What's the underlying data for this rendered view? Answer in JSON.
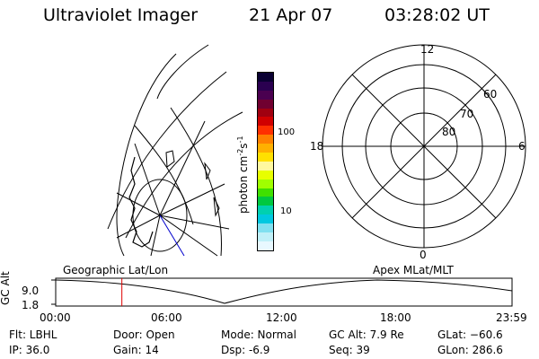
{
  "header": {
    "instrument": "Ultraviolet Imager",
    "date": "21 Apr 07",
    "time": "03:28:02 UT"
  },
  "colorbar": {
    "unit_label_main": "photon cm",
    "unit_sup1": "-2",
    "unit_mid": "s",
    "unit_sup2": "-1",
    "tick_100": "100",
    "tick_10": "10",
    "colors": [
      "#0a0032",
      "#2a0050",
      "#4a0050",
      "#700030",
      "#a00010",
      "#d00000",
      "#ff3000",
      "#ff8000",
      "#ffb000",
      "#ffe000",
      "#fff8a0",
      "#e8ff00",
      "#a0ff00",
      "#40e000",
      "#00c840",
      "#00d0b0",
      "#00c8e0",
      "#80e0f0",
      "#c0f0f8",
      "#e8f8ff"
    ]
  },
  "polar": {
    "mlt_12": "12",
    "mlt_18": "18",
    "mlt_6": "6",
    "mlt_0": "0",
    "lat_60": "60",
    "lat_70": "70",
    "lat_80": "80"
  },
  "timeline": {
    "left_label": "Geographic Lat/Lon",
    "right_label": "Apex MLat/MLT",
    "axis_title": "GC Alt",
    "y_top": "9.0",
    "y_bottom": "1.8",
    "x_ticks": [
      "00:00",
      "06:00",
      "12:00",
      "18:00",
      "23:59"
    ],
    "marker_fraction": 0.145
  },
  "status": {
    "filter": "Flt: LBHL",
    "ip": "IP: 36.0",
    "door": "Door: Open",
    "gain": "Gain: 14",
    "mode": "Mode: Normal",
    "dsp": "Dsp:    -6.9",
    "gc_alt": "GC Alt: 7.9 Re",
    "seq": "Seq: 39",
    "glat": "GLat: −60.6",
    "glon": "GLon: 286.6"
  },
  "colors": {
    "marker": "#e00000",
    "track": "#0000cc"
  }
}
